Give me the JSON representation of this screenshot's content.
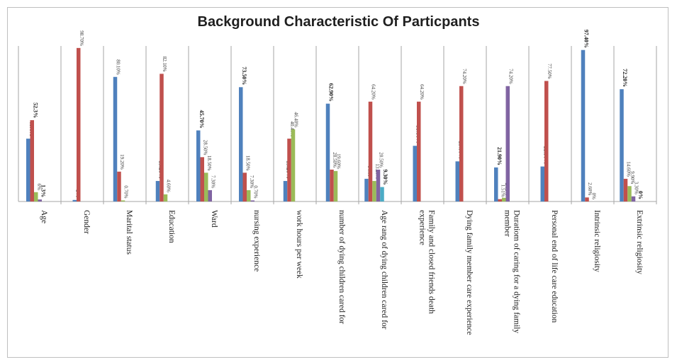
{
  "chart_data": {
    "type": "bar",
    "title": "Background Characteristic Of Particpants",
    "xlabel": "",
    "ylabel": "",
    "ylim": [
      0,
      100
    ],
    "grid": false,
    "categories": [
      {
        "label": [
          "Age"
        ],
        "bars": [
          {
            "series": 0,
            "value": 40.4,
            "label": "40.4%",
            "bold": true
          },
          {
            "series": 1,
            "value": 52.3,
            "label": "52.3%",
            "bold": true
          },
          {
            "series": 2,
            "value": 6,
            "label": "6%",
            "bold": false
          },
          {
            "series": 3,
            "value": 1.3,
            "label": "1.3%",
            "bold": true
          }
        ]
      },
      {
        "label": [
          "Gender"
        ],
        "bars": [
          {
            "series": 0,
            "value": 1,
            "label": "1%",
            "bold": true
          },
          {
            "series": 1,
            "value": 98.7,
            "label": "98.70%",
            "bold": false
          }
        ]
      },
      {
        "label": [
          "Marital status"
        ],
        "bars": [
          {
            "series": 0,
            "value": 80.1,
            "label": "80.10%",
            "bold": false
          },
          {
            "series": 1,
            "value": 19.2,
            "label": "19.20%",
            "bold": false
          },
          {
            "series": 2,
            "value": 0.7,
            "label": "0.70%",
            "bold": false
          }
        ]
      },
      {
        "label": [
          "Education"
        ],
        "bars": [
          {
            "series": 0,
            "value": 13.2,
            "label": "13.20%",
            "bold": true
          },
          {
            "series": 1,
            "value": 82.1,
            "label": "82.10%",
            "bold": false
          },
          {
            "series": 2,
            "value": 4.6,
            "label": "4.60%",
            "bold": false
          }
        ]
      },
      {
        "label": [
          "Ward"
        ],
        "bars": [
          {
            "series": 0,
            "value": 45.7,
            "label": "45.70%",
            "bold": true
          },
          {
            "series": 1,
            "value": 28.5,
            "label": "28.50%",
            "bold": false
          },
          {
            "series": 2,
            "value": 18.5,
            "label": "18.50%",
            "bold": false
          },
          {
            "series": 3,
            "value": 7.3,
            "label": "7.30%",
            "bold": false
          }
        ]
      },
      {
        "label": [
          "nursing experience"
        ],
        "bars": [
          {
            "series": 0,
            "value": 73.5,
            "label": "73.50%",
            "bold": true
          },
          {
            "series": 1,
            "value": 18.5,
            "label": "18.50%",
            "bold": false
          },
          {
            "series": 2,
            "value": 7.3,
            "label": "7.30%",
            "bold": false
          },
          {
            "series": 3,
            "value": 0.7,
            "label": "0.70%",
            "bold": false
          }
        ]
      },
      {
        "label": [
          "work hours per week"
        ],
        "bars": [
          {
            "series": 0,
            "value": 13.2,
            "label": "13.20%",
            "bold": true
          },
          {
            "series": 1,
            "value": 40.4,
            "label": "40.40%",
            "bold": false
          },
          {
            "series": 2,
            "value": 46.4,
            "label": "46.40%",
            "bold": false
          }
        ]
      },
      {
        "label": [
          "number of dying children cared for"
        ],
        "bars": [
          {
            "series": 0,
            "value": 62.9,
            "label": "62.90%",
            "bold": true
          },
          {
            "series": 1,
            "value": 20.5,
            "label": "20.50%",
            "bold": false
          },
          {
            "series": 2,
            "value": 19.6,
            "label": "19.60%",
            "bold": false
          }
        ]
      },
      {
        "label": [
          "Age rang of  dying children cared for"
        ],
        "bars": [
          {
            "series": 0,
            "value": 14.6,
            "label": "14.60",
            "bold": false
          },
          {
            "series": 1,
            "value": 64.2,
            "label": "64.20%",
            "bold": false
          },
          {
            "series": 2,
            "value": 13.2,
            "label": "13.20%",
            "bold": false
          },
          {
            "series": 3,
            "value": 20.5,
            "label": "20.50%",
            "bold": false
          },
          {
            "series": 4,
            "value": 9.3,
            "label": "9.30%",
            "bold": true
          }
        ]
      },
      {
        "label": [
          "Family and closed friends death",
          "experience"
        ],
        "bars": [
          {
            "series": 0,
            "value": 35.8,
            "label": "35.80%",
            "bold": true
          },
          {
            "series": 1,
            "value": 64.2,
            "label": "64.20%",
            "bold": false
          }
        ]
      },
      {
        "label": [
          "Dying family member care experience"
        ],
        "bars": [
          {
            "series": 0,
            "value": 25.8,
            "label": "25.80%",
            "bold": true
          },
          {
            "series": 1,
            "value": 74.2,
            "label": "74.20%",
            "bold": false
          }
        ]
      },
      {
        "label": [
          "Duratiom of caring for a dying family",
          "member"
        ],
        "bars": [
          {
            "series": 0,
            "value": 21.9,
            "label": "21.90%",
            "bold": true
          },
          {
            "series": 1,
            "value": 1.51,
            "label": "1.51%",
            "bold": false
          },
          {
            "series": 2,
            "value": 2.38,
            "label": "2.38%",
            "bold": false
          },
          {
            "series": 3,
            "value": 74.2,
            "label": "74.20%",
            "bold": false
          }
        ]
      },
      {
        "label": [
          "Personal end of life care education"
        ],
        "bars": [
          {
            "series": 0,
            "value": 22.5,
            "label": "22.50%",
            "bold": true
          },
          {
            "series": 1,
            "value": 77.5,
            "label": "77.50%",
            "bold": false
          }
        ]
      },
      {
        "label": [
          "Intrinsic religiosity"
        ],
        "bars": [
          {
            "series": 0,
            "value": 97.4,
            "label": "97.40%",
            "bold": true
          },
          {
            "series": 1,
            "value": 2.6,
            "label": "2.60%",
            "bold": false
          },
          {
            "series": 2,
            "value": 0,
            "label": "0%",
            "bold": false
          }
        ]
      },
      {
        "label": [
          "Extrinsic religiosity"
        ],
        "bars": [
          {
            "series": 0,
            "value": 72.2,
            "label": "72.20%",
            "bold": true
          },
          {
            "series": 1,
            "value": 14.6,
            "label": "14.60%",
            "bold": false
          },
          {
            "series": 2,
            "value": 9.9,
            "label": "9.90%",
            "bold": false
          },
          {
            "series": 3,
            "value": 3.3,
            "label": "3.30%",
            "bold": false
          },
          {
            "series": 4,
            "value": 0,
            "label": "0%",
            "bold": true
          }
        ]
      }
    ],
    "colors": [
      "#4f81bd",
      "#c0504d",
      "#9bbb59",
      "#8064a2",
      "#4bacc6"
    ]
  }
}
